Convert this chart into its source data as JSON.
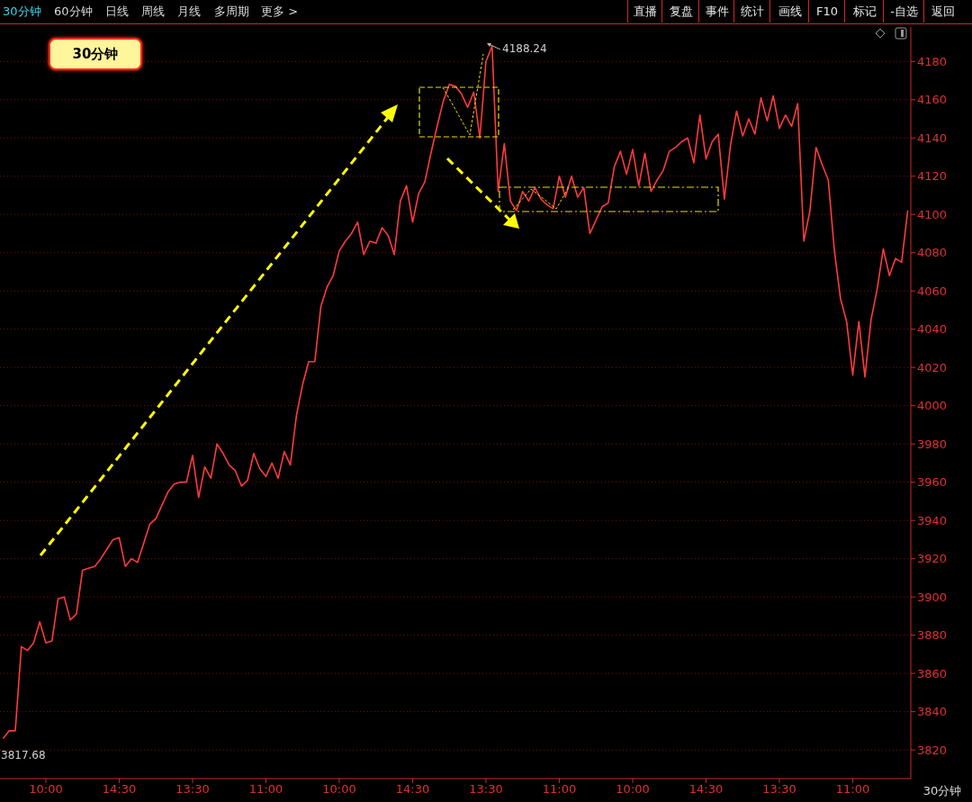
{
  "chart_data": {
    "type": "line",
    "annotations": [
      "30分钟",
      "30分钟",
      "60分钟",
      "日线",
      "周线",
      "月线",
      "多周期",
      "更多 >",
      "直播",
      "复盘",
      "事件",
      "统计",
      "画线",
      "F10",
      "标记",
      "-自选",
      "返回",
      "30分钟",
      "4188.24",
      "3817.68"
    ],
    "categories": [
      null,
      null,
      null,
      null,
      null,
      null,
      null,
      "10:00",
      null,
      null,
      null,
      null,
      null,
      null,
      null,
      null,
      null,
      null,
      null,
      "14:30",
      null,
      null,
      null,
      null,
      null,
      null,
      null,
      null,
      null,
      null,
      null,
      "13:30",
      null,
      null,
      null,
      null,
      null,
      null,
      null,
      null,
      null,
      null,
      null,
      "11:00",
      null,
      null,
      null,
      null,
      null,
      null,
      null,
      null,
      null,
      null,
      null,
      "10:00",
      null,
      null,
      null,
      null,
      null,
      null,
      null,
      null,
      null,
      null,
      null,
      "14:30",
      null,
      null,
      null,
      null,
      null,
      null,
      null,
      null,
      null,
      null,
      null,
      "13:30",
      null,
      null,
      null,
      null,
      null,
      null,
      null,
      null,
      null,
      null,
      null,
      "11:00",
      null,
      null,
      null,
      null,
      null,
      null,
      null,
      null,
      null,
      null,
      null,
      "10:00",
      null,
      null,
      null,
      null,
      null,
      null,
      null,
      null,
      null,
      null,
      null,
      "14:30",
      null,
      null,
      null,
      null,
      null,
      null,
      null,
      null,
      null,
      null,
      null,
      "13:30",
      null,
      null,
      null,
      null,
      null,
      null,
      null,
      null,
      null,
      null,
      null,
      "11:00",
      null,
      null,
      null,
      null,
      null,
      null,
      null,
      null,
      null
    ],
    "values": [
      3826,
      3830,
      3830,
      3874,
      3872,
      3876,
      3887,
      3876,
      3877,
      3899,
      3900,
      3888,
      3891,
      3914,
      3915,
      3916,
      3920,
      3925,
      3930,
      3931,
      3916,
      3920,
      3918,
      3928,
      3938,
      3941,
      3948,
      3955,
      3959,
      3960,
      3960,
      3974,
      3952,
      3968,
      3962,
      3980,
      3975,
      3969,
      3966,
      3958,
      3961,
      3975,
      3967,
      3963,
      3970,
      3962,
      3976,
      3969,
      3995,
      4011,
      4023,
      4023,
      4052,
      4062,
      4068,
      4081,
      4086,
      4090,
      4096,
      4079,
      4086,
      4085,
      4093,
      4089,
      4079,
      4107,
      4115,
      4096,
      4111,
      4117,
      4132,
      4146,
      4159,
      4168,
      4167,
      4163,
      4156,
      4164,
      4140,
      4180,
      4188,
      4112,
      4137,
      4107,
      4102,
      4112,
      4107,
      4114,
      4108,
      4105,
      4103,
      4120,
      4109,
      4120,
      4109,
      4114,
      4090,
      4097,
      4104,
      4106,
      4125,
      4133,
      4121,
      4134,
      4115,
      4132,
      4112,
      4118,
      4123,
      4133,
      4135,
      4138,
      4140,
      4127,
      4152,
      4129,
      4138,
      4142,
      4108,
      4136,
      4154,
      4141,
      4150,
      4142,
      4161,
      4149,
      4162,
      4145,
      4152,
      4146,
      4158,
      4086,
      4102,
      4135,
      4126,
      4118,
      4081,
      4056,
      4044,
      4016,
      4044,
      4015,
      4045,
      4061,
      4082,
      4068,
      4077,
      4075,
      4102
    ],
    "color": "#ff3b3b",
    "ylim": [
      3805,
      4198
    ],
    "yticks": [
      3820,
      3840,
      3860,
      3880,
      3900,
      3920,
      3940,
      3960,
      3980,
      4000,
      4020,
      4040,
      4060,
      4080,
      4100,
      4120,
      4140,
      4160,
      4180
    ],
    "grid": "y"
  }
}
